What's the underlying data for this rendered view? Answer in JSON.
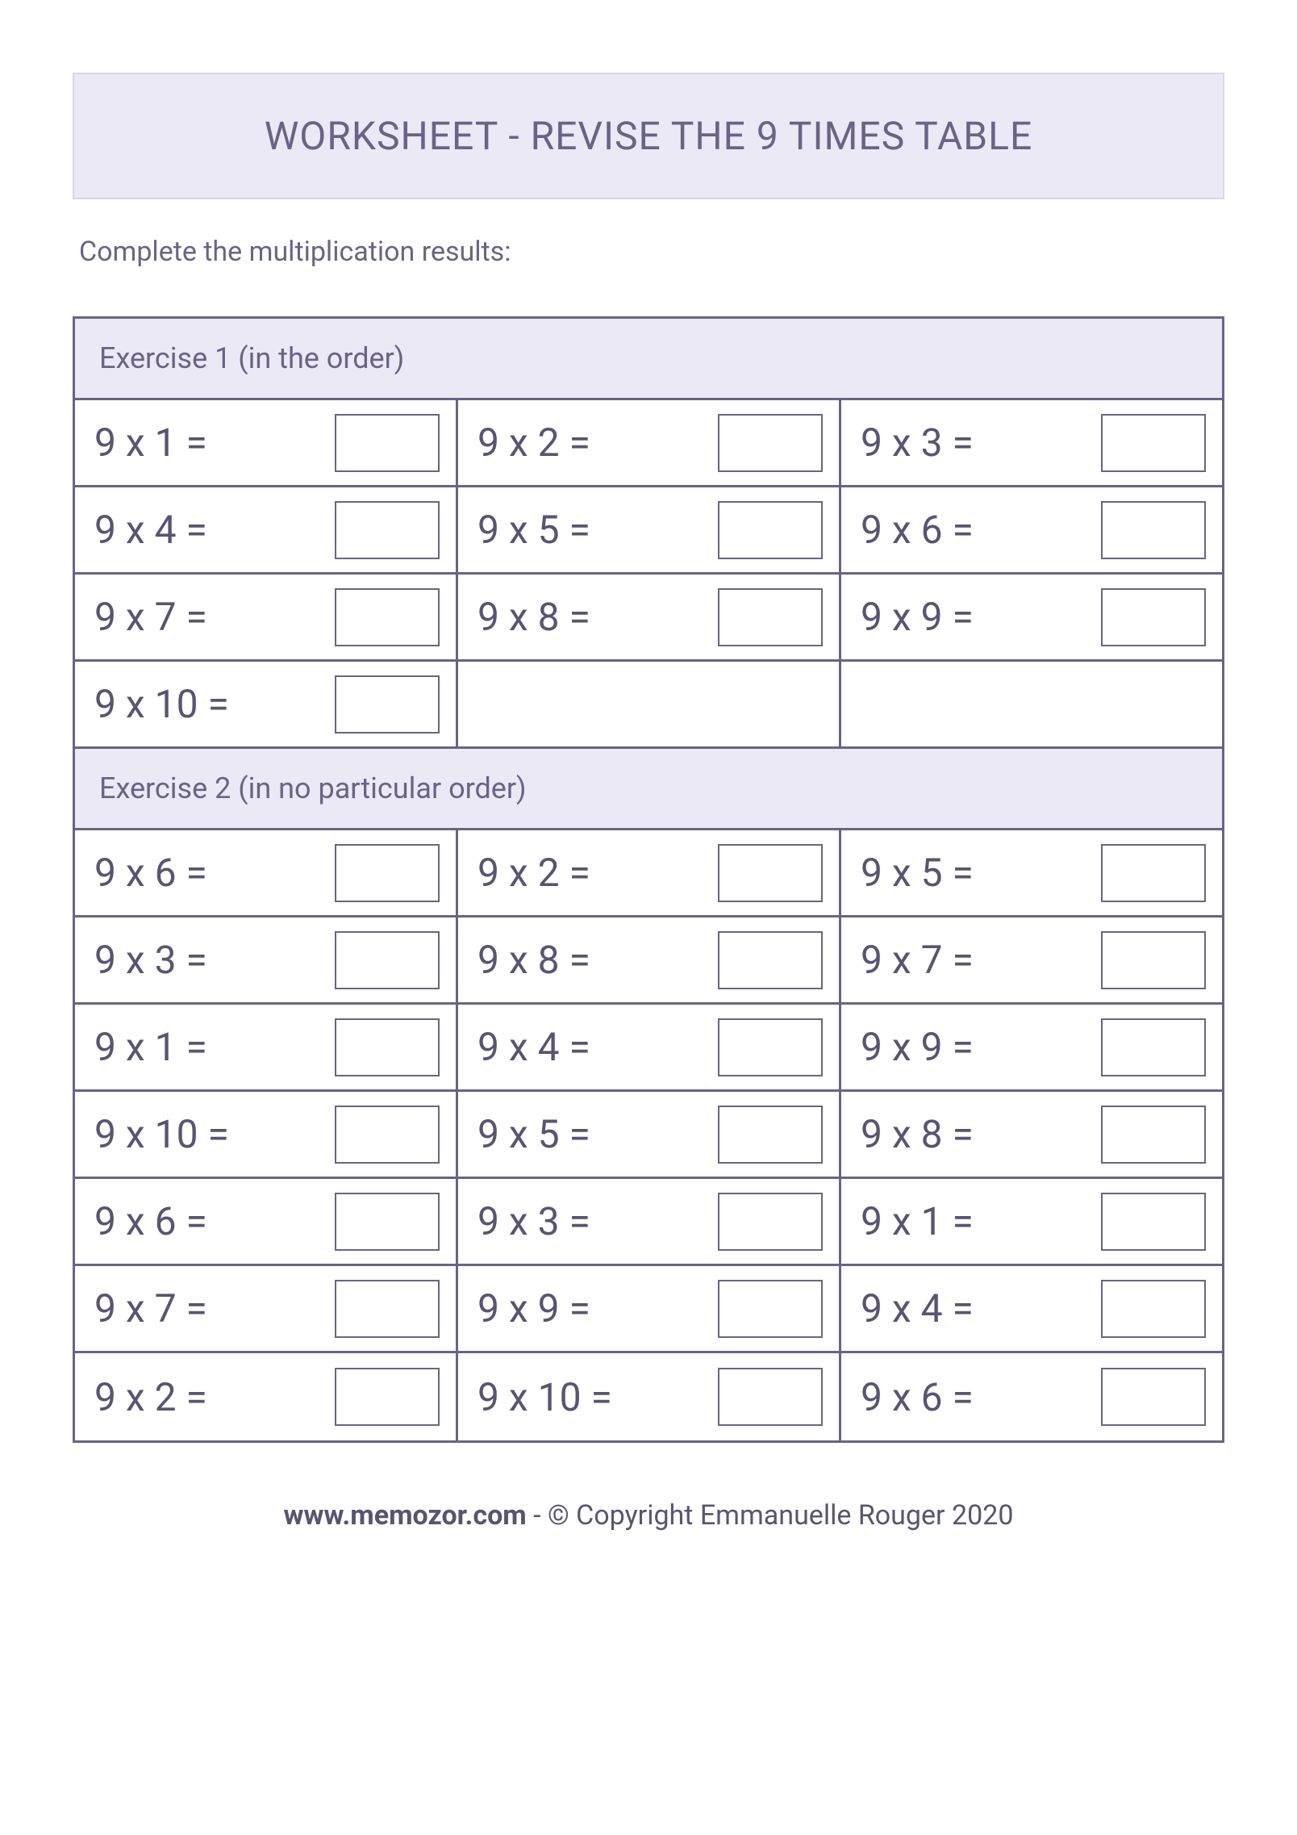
{
  "colors": {
    "title_bg": "#ebe9f5",
    "title_border": "#d9d6e8",
    "text_muted": "#6b6385",
    "text_problem": "#5a5470",
    "table_border": "#6b6385",
    "page_bg": "#ffffff"
  },
  "title": "WORKSHEET - REVISE THE 9 TIMES TABLE",
  "instruction": "Complete the multiplication results:",
  "exercises": [
    {
      "header": "Exercise 1 (in the order)",
      "rows": [
        [
          "9 x 1 =",
          "9 x 2 =",
          "9 x 3 ="
        ],
        [
          "9 x 4 =",
          "9 x 5 =",
          "9 x 6 ="
        ],
        [
          "9 x 7 =",
          "9 x 8 =",
          "9 x 9 ="
        ],
        [
          "9 x 10 =",
          "",
          ""
        ]
      ]
    },
    {
      "header": "Exercise 2 (in no particular order)",
      "rows": [
        [
          "9 x 6 =",
          "9 x 2 =",
          "9 x 5 ="
        ],
        [
          "9 x 3 =",
          "9 x 8 =",
          "9 x 7 ="
        ],
        [
          "9 x 1 =",
          "9 x 4 =",
          "9 x 9 ="
        ],
        [
          "9 x 10 =",
          "9 x 5 =",
          "9 x 8 ="
        ],
        [
          "9 x 6 =",
          "9 x 3 =",
          "9 x 1 ="
        ],
        [
          "9 x 7 =",
          "9 x 9 =",
          "9 x 4 ="
        ],
        [
          "9 x 2 =",
          "9 x 10 =",
          "9 x 6 ="
        ]
      ]
    }
  ],
  "footer": {
    "site": "www.memozor.com",
    "rest": " - © Copyright Emmanuelle Rouger 2020"
  },
  "typography": {
    "title_fontsize": 48,
    "instruction_fontsize": 34,
    "section_header_fontsize": 36,
    "problem_fontsize": 48,
    "footer_fontsize": 34
  }
}
